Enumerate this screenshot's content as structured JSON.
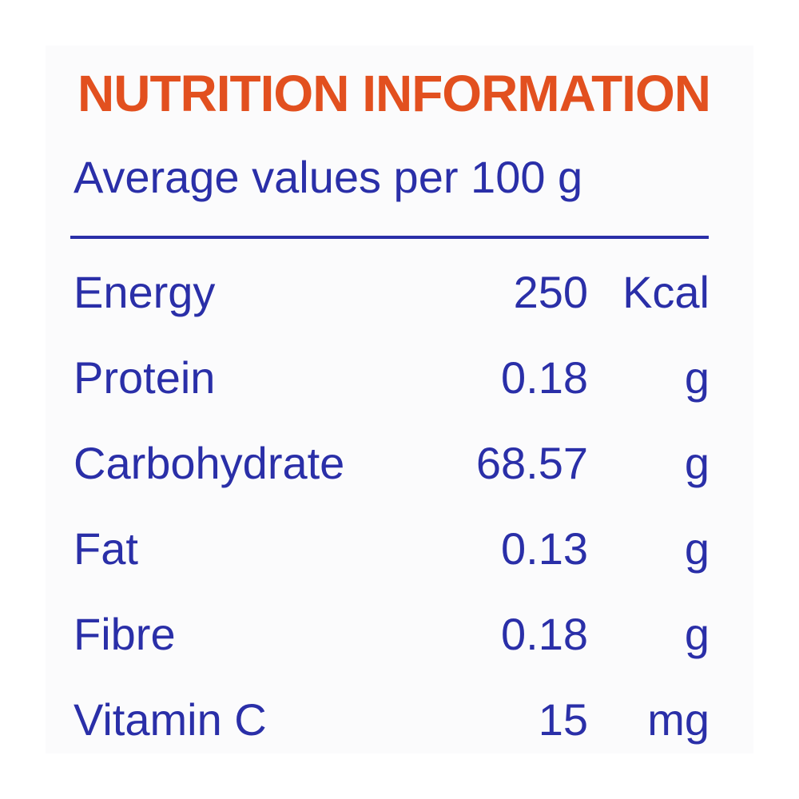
{
  "label": {
    "title": "NUTRITION INFORMATION",
    "subtitle": "Average values per 100 g",
    "rows": [
      {
        "nutrient": "Energy",
        "amount": "250",
        "unit": "Kcal"
      },
      {
        "nutrient": "Protein",
        "amount": "0.18",
        "unit": "g"
      },
      {
        "nutrient": "Carbohydrate",
        "amount": "68.57",
        "unit": "g"
      },
      {
        "nutrient": "Fat",
        "amount": "0.13",
        "unit": "g"
      },
      {
        "nutrient": "Fibre",
        "amount": "0.18",
        "unit": "g"
      },
      {
        "nutrient": "Vitamin C",
        "amount": "15",
        "unit": "mg"
      }
    ]
  },
  "colors": {
    "title": "#e2501f",
    "text": "#2a2fa8",
    "background": "#fbfbfc"
  }
}
